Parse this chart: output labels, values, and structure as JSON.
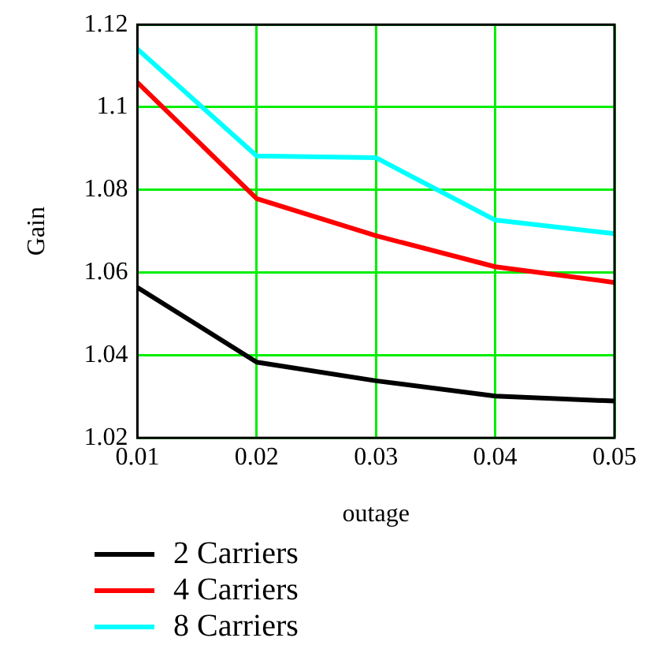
{
  "chart_data": {
    "type": "line",
    "xlabel": "outage",
    "ylabel": "Gain",
    "x": [
      0.01,
      0.02,
      0.03,
      0.04,
      0.05
    ],
    "series": [
      {
        "name": "2 Carriers",
        "color": "#000000",
        "values": [
          1.0564,
          1.0383,
          1.0338,
          1.0301,
          1.0289
        ]
      },
      {
        "name": "4 Carriers",
        "color": "#ff0000",
        "values": [
          1.106,
          1.0779,
          1.0689,
          1.0614,
          1.0576
        ]
      },
      {
        "name": "8 Carriers",
        "color": "#00ffff",
        "values": [
          1.1141,
          1.0882,
          1.0878,
          1.0727,
          1.0694
        ]
      }
    ],
    "xlim": [
      0.01,
      0.05
    ],
    "xticks": [
      0.01,
      0.02,
      0.03,
      0.04,
      0.05
    ],
    "ylim": [
      1.02,
      1.12
    ],
    "yticks": [
      1.02,
      1.04,
      1.06,
      1.08,
      1.1,
      1.12
    ],
    "grid": true,
    "legend": "bottom",
    "marker": "none",
    "line_style": "solid"
  }
}
